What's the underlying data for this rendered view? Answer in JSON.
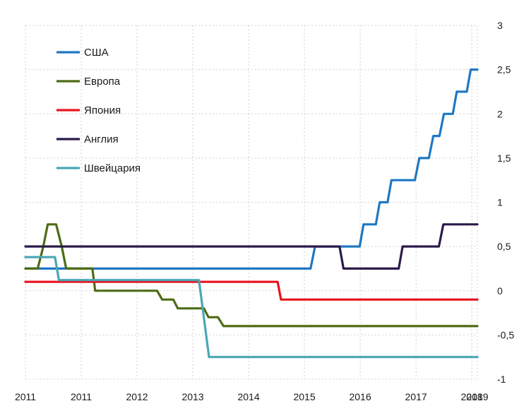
{
  "chart_data": {
    "type": "line",
    "title": "",
    "xlabel": "",
    "ylabel": "",
    "xlim": [
      2010.9,
      2019.0
    ],
    "ylim": [
      -1,
      3
    ],
    "grid": true,
    "legend_position": "top-left",
    "y_ticks": [
      {
        "value": 3,
        "label": "3"
      },
      {
        "value": 2.5,
        "label": "2,5"
      },
      {
        "value": 2,
        "label": "2"
      },
      {
        "value": 1.5,
        "label": "1,5"
      },
      {
        "value": 1,
        "label": "1"
      },
      {
        "value": 0.5,
        "label": "0,5"
      },
      {
        "value": 0,
        "label": "0"
      },
      {
        "value": -0.5,
        "label": "-0,5"
      },
      {
        "value": -1,
        "label": "-1"
      }
    ],
    "x_ticks": [
      {
        "value": 2010.9,
        "label": "2011"
      },
      {
        "value": 2011.9,
        "label": "2011"
      },
      {
        "value": 2012.9,
        "label": "2012"
      },
      {
        "value": 2013.9,
        "label": "2013"
      },
      {
        "value": 2014.9,
        "label": "2014"
      },
      {
        "value": 2015.9,
        "label": "2015"
      },
      {
        "value": 2016.9,
        "label": "2016"
      },
      {
        "value": 2017.9,
        "label": "2017"
      },
      {
        "value": 2018.9,
        "label": "2018"
      },
      {
        "value": 2019.0,
        "label": "2019"
      }
    ],
    "series": [
      {
        "name": "США",
        "color": "#1f77c4",
        "points": [
          [
            2010.9,
            0.25
          ],
          [
            2016.01,
            0.25
          ],
          [
            2016.09,
            0.5
          ],
          [
            2016.89,
            0.5
          ],
          [
            2016.96,
            0.75
          ],
          [
            2017.18,
            0.75
          ],
          [
            2017.25,
            1.0
          ],
          [
            2017.39,
            1.0
          ],
          [
            2017.46,
            1.25
          ],
          [
            2017.88,
            1.25
          ],
          [
            2017.96,
            1.5
          ],
          [
            2018.13,
            1.5
          ],
          [
            2018.21,
            1.75
          ],
          [
            2018.32,
            1.75
          ],
          [
            2018.4,
            2.0
          ],
          [
            2018.56,
            2.0
          ],
          [
            2018.63,
            2.25
          ],
          [
            2018.81,
            2.25
          ],
          [
            2018.88,
            2.5
          ],
          [
            2019.0,
            2.5
          ]
        ]
      },
      {
        "name": "Европа",
        "color": "#4e6b14",
        "points": [
          [
            2010.9,
            0.25
          ],
          [
            2011.12,
            0.25
          ],
          [
            2011.22,
            0.5
          ],
          [
            2011.3,
            0.75
          ],
          [
            2011.45,
            0.75
          ],
          [
            2011.55,
            0.5
          ],
          [
            2011.63,
            0.25
          ],
          [
            2012.1,
            0.25
          ],
          [
            2012.15,
            0.0
          ],
          [
            2013.26,
            0.0
          ],
          [
            2013.35,
            -0.1
          ],
          [
            2013.55,
            -0.1
          ],
          [
            2013.63,
            -0.2
          ],
          [
            2014.1,
            -0.2
          ],
          [
            2014.18,
            -0.3
          ],
          [
            2014.35,
            -0.3
          ],
          [
            2014.45,
            -0.4
          ],
          [
            2019.0,
            -0.4
          ]
        ]
      },
      {
        "name": "Япония",
        "color": "#e8141e",
        "points": [
          [
            2010.9,
            0.1
          ],
          [
            2015.42,
            0.1
          ],
          [
            2015.48,
            -0.1
          ],
          [
            2019.0,
            -0.1
          ]
        ]
      },
      {
        "name": "Англия",
        "color": "#2c1a4a",
        "points": [
          [
            2010.9,
            0.5
          ],
          [
            2016.53,
            0.5
          ],
          [
            2016.6,
            0.25
          ],
          [
            2017.59,
            0.25
          ],
          [
            2017.66,
            0.5
          ],
          [
            2018.31,
            0.5
          ],
          [
            2018.39,
            0.75
          ],
          [
            2019.0,
            0.75
          ]
        ]
      },
      {
        "name": "Швейцария",
        "color": "#4aa6b4",
        "points": [
          [
            2010.9,
            0.38
          ],
          [
            2011.43,
            0.38
          ],
          [
            2011.5,
            0.12
          ],
          [
            2014.01,
            0.12
          ],
          [
            2014.19,
            -0.75
          ],
          [
            2019.0,
            -0.75
          ]
        ]
      }
    ]
  }
}
